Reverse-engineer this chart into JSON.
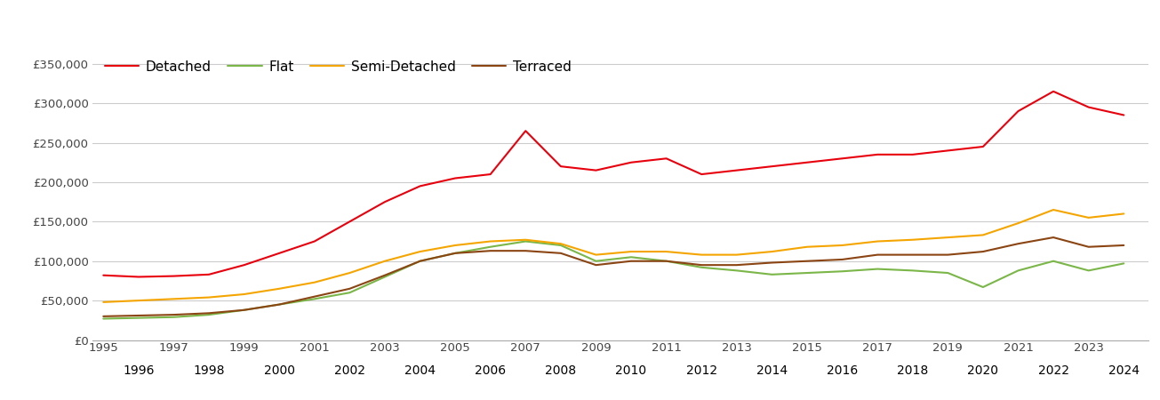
{
  "series": {
    "Detached": {
      "color": "#e8000d",
      "years": [
        1995,
        1996,
        1997,
        1998,
        1999,
        2000,
        2001,
        2002,
        2003,
        2004,
        2005,
        2006,
        2007,
        2008,
        2009,
        2010,
        2011,
        2012,
        2013,
        2014,
        2015,
        2016,
        2017,
        2018,
        2019,
        2020,
        2021,
        2022,
        2023,
        2024
      ],
      "values": [
        82000,
        80000,
        81000,
        83000,
        95000,
        110000,
        125000,
        150000,
        175000,
        195000,
        205000,
        210000,
        265000,
        220000,
        215000,
        225000,
        230000,
        210000,
        215000,
        220000,
        225000,
        230000,
        235000,
        235000,
        240000,
        245000,
        290000,
        315000,
        295000,
        285000
      ]
    },
    "Flat": {
      "color": "#7ab648",
      "years": [
        1995,
        1996,
        1997,
        1998,
        1999,
        2000,
        2001,
        2002,
        2003,
        2004,
        2005,
        2006,
        2007,
        2008,
        2009,
        2010,
        2011,
        2012,
        2013,
        2014,
        2015,
        2016,
        2017,
        2018,
        2019,
        2020,
        2021,
        2022,
        2023,
        2024
      ],
      "values": [
        27000,
        28000,
        29000,
        32000,
        38000,
        45000,
        52000,
        60000,
        80000,
        100000,
        110000,
        118000,
        125000,
        120000,
        100000,
        105000,
        100000,
        92000,
        88000,
        83000,
        85000,
        87000,
        90000,
        88000,
        85000,
        67000,
        88000,
        100000,
        88000,
        97000
      ]
    },
    "Semi-Detached": {
      "color": "#f5a500",
      "years": [
        1995,
        1996,
        1997,
        1998,
        1999,
        2000,
        2001,
        2002,
        2003,
        2004,
        2005,
        2006,
        2007,
        2008,
        2009,
        2010,
        2011,
        2012,
        2013,
        2014,
        2015,
        2016,
        2017,
        2018,
        2019,
        2020,
        2021,
        2022,
        2023,
        2024
      ],
      "values": [
        48000,
        50000,
        52000,
        54000,
        58000,
        65000,
        73000,
        85000,
        100000,
        112000,
        120000,
        125000,
        127000,
        122000,
        108000,
        112000,
        112000,
        108000,
        108000,
        112000,
        118000,
        120000,
        125000,
        127000,
        130000,
        133000,
        148000,
        165000,
        155000,
        160000
      ]
    },
    "Terraced": {
      "color": "#8B4513",
      "years": [
        1995,
        1996,
        1997,
        1998,
        1999,
        2000,
        2001,
        2002,
        2003,
        2004,
        2005,
        2006,
        2007,
        2008,
        2009,
        2010,
        2011,
        2012,
        2013,
        2014,
        2015,
        2016,
        2017,
        2018,
        2019,
        2020,
        2021,
        2022,
        2023,
        2024
      ],
      "values": [
        30000,
        31000,
        32000,
        34000,
        38000,
        45000,
        55000,
        65000,
        82000,
        100000,
        110000,
        113000,
        113000,
        110000,
        95000,
        100000,
        100000,
        95000,
        95000,
        98000,
        100000,
        102000,
        108000,
        108000,
        108000,
        112000,
        122000,
        130000,
        118000,
        120000
      ]
    }
  },
  "ylim": [
    0,
    370000
  ],
  "yticks": [
    0,
    50000,
    100000,
    150000,
    200000,
    250000,
    300000,
    350000
  ],
  "xlabel_odd": [
    1995,
    1997,
    1999,
    2001,
    2003,
    2005,
    2007,
    2009,
    2011,
    2013,
    2015,
    2017,
    2019,
    2021,
    2023
  ],
  "xlabel_even": [
    1996,
    1998,
    2000,
    2002,
    2004,
    2006,
    2008,
    2010,
    2012,
    2014,
    2016,
    2018,
    2020,
    2022,
    2024
  ],
  "background_color": "#ffffff",
  "grid_color": "#cccccc",
  "line_width": 1.5,
  "tick_label_color": "#444444",
  "tick_fontsize": 9.5
}
